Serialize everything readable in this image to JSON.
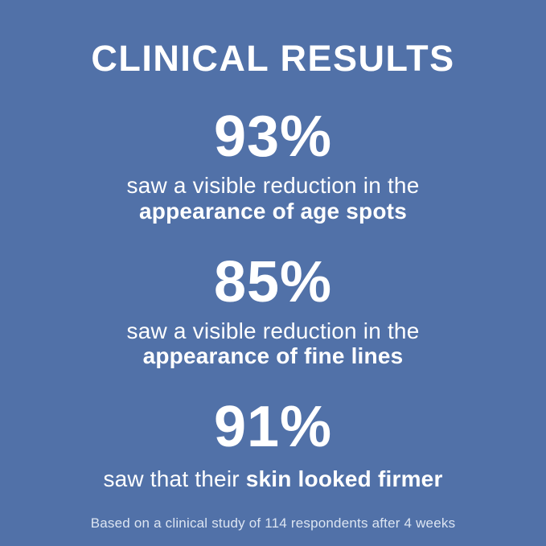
{
  "colors": {
    "background": "#5171A8",
    "text": "#FFFFFF",
    "footnote_text": "#DCE5F2"
  },
  "title": "CLINICAL RESULTS",
  "stats": [
    {
      "value": "93%",
      "description_regular": "saw a visible reduction in the",
      "description_bold": "appearance of age spots"
    },
    {
      "value": "85%",
      "description_regular": "saw a visible reduction in the",
      "description_bold": "appearance of fine lines"
    },
    {
      "value": "91%",
      "description_regular": "saw that their",
      "description_bold": "skin looked firmer"
    }
  ],
  "footnote": "Based on a clinical study of 114 respondents after 4 weeks"
}
